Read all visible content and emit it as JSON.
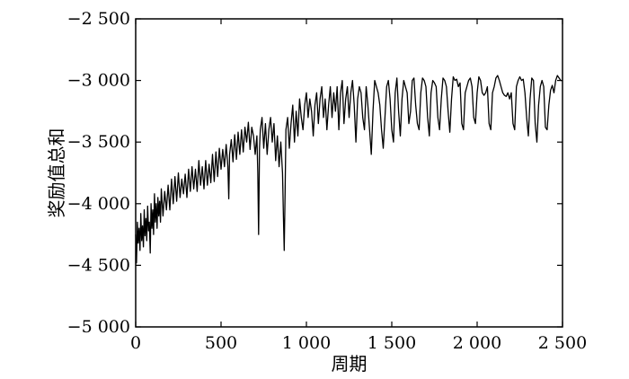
{
  "chart_data": {
    "type": "line",
    "title": "",
    "xlabel": "周期",
    "ylabel": "奖励值总和",
    "xlim": [
      0,
      2500
    ],
    "ylim": [
      -5000,
      -2500
    ],
    "grid": false,
    "x_ticks": [
      {
        "value": 0,
        "label": "0"
      },
      {
        "value": 500,
        "label": "500"
      },
      {
        "value": 1000,
        "label": "1 000"
      },
      {
        "value": 1500,
        "label": "1 500"
      },
      {
        "value": 2000,
        "label": "2 000"
      },
      {
        "value": 2500,
        "label": "2 500"
      }
    ],
    "y_ticks": [
      {
        "value": -2500,
        "label": "−2 500"
      },
      {
        "value": -3000,
        "label": "−3 000"
      },
      {
        "value": -3500,
        "label": "−3 500"
      },
      {
        "value": -4000,
        "label": "−4 000"
      },
      {
        "value": -4500,
        "label": "−4 500"
      },
      {
        "value": -5000,
        "label": "−5 000"
      }
    ],
    "series": [
      {
        "color": "#000000",
        "points": [
          [
            0,
            -4250
          ],
          [
            5,
            -4480
          ],
          [
            10,
            -4150
          ],
          [
            15,
            -4320
          ],
          [
            20,
            -4200
          ],
          [
            25,
            -4380
          ],
          [
            30,
            -4080
          ],
          [
            35,
            -4300
          ],
          [
            40,
            -4180
          ],
          [
            45,
            -4350
          ],
          [
            50,
            -4050
          ],
          [
            55,
            -4260
          ],
          [
            60,
            -4120
          ],
          [
            65,
            -4300
          ],
          [
            70,
            -4020
          ],
          [
            75,
            -4220
          ],
          [
            80,
            -4150
          ],
          [
            85,
            -4400
          ],
          [
            90,
            -4000
          ],
          [
            95,
            -4200
          ],
          [
            100,
            -4050
          ],
          [
            105,
            -4250
          ],
          [
            110,
            -3920
          ],
          [
            115,
            -4150
          ],
          [
            120,
            -4000
          ],
          [
            125,
            -4200
          ],
          [
            130,
            -3950
          ],
          [
            135,
            -4100
          ],
          [
            140,
            -3980
          ],
          [
            145,
            -4150
          ],
          [
            150,
            -3880
          ],
          [
            160,
            -4100
          ],
          [
            170,
            -3900
          ],
          [
            180,
            -4050
          ],
          [
            190,
            -3850
          ],
          [
            200,
            -4050
          ],
          [
            210,
            -3800
          ],
          [
            220,
            -4000
          ],
          [
            230,
            -3780
          ],
          [
            240,
            -3980
          ],
          [
            250,
            -3750
          ],
          [
            260,
            -3950
          ],
          [
            270,
            -3800
          ],
          [
            280,
            -3920
          ],
          [
            290,
            -3760
          ],
          [
            300,
            -3950
          ],
          [
            310,
            -3720
          ],
          [
            320,
            -3900
          ],
          [
            330,
            -3700
          ],
          [
            340,
            -3880
          ],
          [
            350,
            -3720
          ],
          [
            360,
            -3900
          ],
          [
            370,
            -3650
          ],
          [
            380,
            -3850
          ],
          [
            390,
            -3700
          ],
          [
            400,
            -3880
          ],
          [
            410,
            -3650
          ],
          [
            420,
            -3850
          ],
          [
            430,
            -3680
          ],
          [
            440,
            -3830
          ],
          [
            450,
            -3600
          ],
          [
            460,
            -3820
          ],
          [
            470,
            -3580
          ],
          [
            480,
            -3780
          ],
          [
            490,
            -3550
          ],
          [
            500,
            -3720
          ],
          [
            510,
            -3560
          ],
          [
            520,
            -3700
          ],
          [
            530,
            -3520
          ],
          [
            540,
            -3700
          ],
          [
            545,
            -3960
          ],
          [
            550,
            -3600
          ],
          [
            560,
            -3480
          ],
          [
            570,
            -3660
          ],
          [
            580,
            -3440
          ],
          [
            590,
            -3640
          ],
          [
            600,
            -3420
          ],
          [
            610,
            -3600
          ],
          [
            620,
            -3400
          ],
          [
            630,
            -3580
          ],
          [
            640,
            -3380
          ],
          [
            650,
            -3500
          ],
          [
            660,
            -3340
          ],
          [
            670,
            -3560
          ],
          [
            680,
            -3380
          ],
          [
            690,
            -3450
          ],
          [
            700,
            -3600
          ],
          [
            710,
            -3450
          ],
          [
            715,
            -3750
          ],
          [
            720,
            -4250
          ],
          [
            725,
            -3550
          ],
          [
            730,
            -3400
          ],
          [
            740,
            -3300
          ],
          [
            750,
            -3550
          ],
          [
            760,
            -3350
          ],
          [
            770,
            -3600
          ],
          [
            780,
            -3400
          ],
          [
            790,
            -3300
          ],
          [
            800,
            -3500
          ],
          [
            810,
            -3350
          ],
          [
            820,
            -3650
          ],
          [
            830,
            -3450
          ],
          [
            840,
            -3700
          ],
          [
            850,
            -3500
          ],
          [
            860,
            -3750
          ],
          [
            865,
            -4100
          ],
          [
            870,
            -4380
          ],
          [
            875,
            -3900
          ],
          [
            880,
            -3400
          ],
          [
            890,
            -3300
          ],
          [
            900,
            -3550
          ],
          [
            910,
            -3350
          ],
          [
            920,
            -3200
          ],
          [
            930,
            -3500
          ],
          [
            940,
            -3250
          ],
          [
            950,
            -3450
          ],
          [
            960,
            -3150
          ],
          [
            970,
            -3300
          ],
          [
            980,
            -3400
          ],
          [
            990,
            -3200
          ],
          [
            1000,
            -3100
          ],
          [
            1010,
            -3300
          ],
          [
            1020,
            -3150
          ],
          [
            1030,
            -3250
          ],
          [
            1040,
            -3450
          ],
          [
            1050,
            -3200
          ],
          [
            1060,
            -3100
          ],
          [
            1070,
            -3350
          ],
          [
            1080,
            -3150
          ],
          [
            1090,
            -3050
          ],
          [
            1100,
            -3300
          ],
          [
            1110,
            -3150
          ],
          [
            1120,
            -3400
          ],
          [
            1130,
            -3200
          ],
          [
            1140,
            -3050
          ],
          [
            1150,
            -3300
          ],
          [
            1160,
            -3100
          ],
          [
            1170,
            -3250
          ],
          [
            1180,
            -3050
          ],
          [
            1190,
            -3400
          ],
          [
            1200,
            -3100
          ],
          [
            1210,
            -3000
          ],
          [
            1220,
            -3350
          ],
          [
            1230,
            -3150
          ],
          [
            1240,
            -3050
          ],
          [
            1250,
            -3300
          ],
          [
            1260,
            -3100
          ],
          [
            1270,
            -3000
          ],
          [
            1280,
            -3200
          ],
          [
            1290,
            -3500
          ],
          [
            1300,
            -3150
          ],
          [
            1310,
            -3050
          ],
          [
            1320,
            -3100
          ],
          [
            1330,
            -3300
          ],
          [
            1340,
            -3400
          ],
          [
            1350,
            -3050
          ],
          [
            1360,
            -3200
          ],
          [
            1370,
            -3400
          ],
          [
            1380,
            -3600
          ],
          [
            1390,
            -3250
          ],
          [
            1400,
            -3000
          ],
          [
            1410,
            -3050
          ],
          [
            1420,
            -3100
          ],
          [
            1430,
            -3200
          ],
          [
            1440,
            -3400
          ],
          [
            1450,
            -3550
          ],
          [
            1460,
            -3300
          ],
          [
            1470,
            -3050
          ],
          [
            1480,
            -3000
          ],
          [
            1490,
            -3150
          ],
          [
            1500,
            -3400
          ],
          [
            1510,
            -3500
          ],
          [
            1520,
            -3100
          ],
          [
            1530,
            -2980
          ],
          [
            1540,
            -3250
          ],
          [
            1550,
            -3450
          ],
          [
            1560,
            -3150
          ],
          [
            1570,
            -3000
          ],
          [
            1580,
            -3050
          ],
          [
            1590,
            -3100
          ],
          [
            1600,
            -3350
          ],
          [
            1610,
            -3250
          ],
          [
            1620,
            -3000
          ],
          [
            1630,
            -2980
          ],
          [
            1640,
            -3200
          ],
          [
            1650,
            -3350
          ],
          [
            1660,
            -3400
          ],
          [
            1670,
            -3100
          ],
          [
            1680,
            -2980
          ],
          [
            1690,
            -3000
          ],
          [
            1700,
            -3050
          ],
          [
            1710,
            -3300
          ],
          [
            1720,
            -3450
          ],
          [
            1730,
            -3100
          ],
          [
            1740,
            -3000
          ],
          [
            1750,
            -3020
          ],
          [
            1760,
            -3050
          ],
          [
            1770,
            -3300
          ],
          [
            1780,
            -3400
          ],
          [
            1790,
            -3150
          ],
          [
            1800,
            -2980
          ],
          [
            1810,
            -3000
          ],
          [
            1820,
            -3050
          ],
          [
            1830,
            -3250
          ],
          [
            1840,
            -3420
          ],
          [
            1850,
            -3150
          ],
          [
            1860,
            -2970
          ],
          [
            1870,
            -3000
          ],
          [
            1880,
            -2990
          ],
          [
            1890,
            -3050
          ],
          [
            1900,
            -3020
          ],
          [
            1910,
            -3350
          ],
          [
            1920,
            -3400
          ],
          [
            1930,
            -3100
          ],
          [
            1940,
            -3050
          ],
          [
            1950,
            -3000
          ],
          [
            1960,
            -2980
          ],
          [
            1970,
            -3050
          ],
          [
            1980,
            -3300
          ],
          [
            1990,
            -3350
          ],
          [
            2000,
            -3100
          ],
          [
            2010,
            -2970
          ],
          [
            2020,
            -3000
          ],
          [
            2030,
            -3100
          ],
          [
            2040,
            -3120
          ],
          [
            2050,
            -3100
          ],
          [
            2060,
            -3050
          ],
          [
            2070,
            -3350
          ],
          [
            2080,
            -3400
          ],
          [
            2090,
            -3100
          ],
          [
            2100,
            -3050
          ],
          [
            2110,
            -2980
          ],
          [
            2120,
            -2960
          ],
          [
            2130,
            -3000
          ],
          [
            2140,
            -3050
          ],
          [
            2150,
            -3100
          ],
          [
            2160,
            -3120
          ],
          [
            2170,
            -3130
          ],
          [
            2180,
            -3100
          ],
          [
            2190,
            -3150
          ],
          [
            2200,
            -3100
          ],
          [
            2210,
            -3350
          ],
          [
            2220,
            -3400
          ],
          [
            2230,
            -3050
          ],
          [
            2240,
            -3000
          ],
          [
            2250,
            -2970
          ],
          [
            2260,
            -3000
          ],
          [
            2270,
            -2990
          ],
          [
            2280,
            -3100
          ],
          [
            2290,
            -3300
          ],
          [
            2300,
            -3450
          ],
          [
            2310,
            -3150
          ],
          [
            2320,
            -2980
          ],
          [
            2330,
            -3000
          ],
          [
            2340,
            -3350
          ],
          [
            2350,
            -3500
          ],
          [
            2360,
            -3200
          ],
          [
            2370,
            -3050
          ],
          [
            2380,
            -3000
          ],
          [
            2390,
            -3050
          ],
          [
            2400,
            -3380
          ],
          [
            2410,
            -3400
          ],
          [
            2420,
            -3200
          ],
          [
            2430,
            -3080
          ],
          [
            2440,
            -3040
          ],
          [
            2450,
            -3100
          ],
          [
            2460,
            -3000
          ],
          [
            2470,
            -2960
          ],
          [
            2480,
            -2980
          ],
          [
            2490,
            -3000
          ],
          [
            2500,
            -3000
          ]
        ]
      }
    ]
  }
}
